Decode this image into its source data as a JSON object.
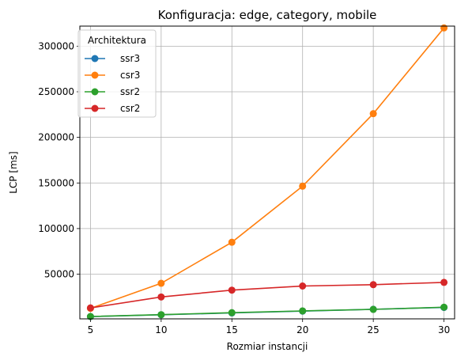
{
  "chart_data": {
    "type": "line",
    "title": "Konfiguracja: edge, category, mobile",
    "xlabel": "Rozmiar instancji",
    "ylabel": "LCP [ms]",
    "x": [
      5,
      10,
      15,
      20,
      25,
      30
    ],
    "xticks": [
      5,
      10,
      15,
      20,
      25,
      30
    ],
    "yticks": [
      50000,
      100000,
      150000,
      200000,
      250000,
      300000
    ],
    "xlim": [
      4.25,
      30.75
    ],
    "ylim": [
      1000,
      322000
    ],
    "grid": true,
    "legend": {
      "title": "Architektura",
      "placement": "top-left"
    },
    "series": [
      {
        "name": "ssr3",
        "color": "#1f77b4",
        "values": [
          3500,
          5500,
          7500,
          9500,
          11500,
          13500
        ]
      },
      {
        "name": "csr3",
        "color": "#ff7f0e",
        "values": [
          12500,
          40000,
          85000,
          146500,
          226000,
          320000
        ]
      },
      {
        "name": "ssr2",
        "color": "#2ca02c",
        "values": [
          3600,
          5600,
          7800,
          9700,
          11400,
          13800
        ]
      },
      {
        "name": "csr2",
        "color": "#d62728",
        "values": [
          13000,
          25000,
          32500,
          37000,
          38500,
          41000
        ]
      }
    ]
  }
}
